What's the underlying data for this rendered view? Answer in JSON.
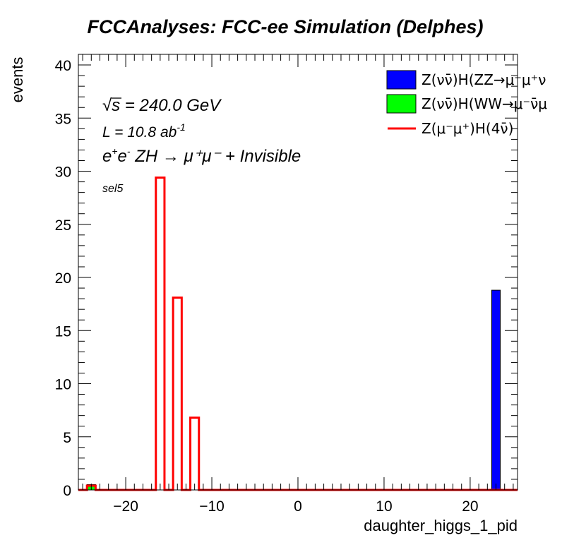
{
  "chart_data": {
    "type": "bar",
    "title": "FCCAnalyses: FCC-ee Simulation (Delphes)",
    "xlabel": "daughter_higgs_1_pid",
    "ylabel": "events",
    "xlim": [
      -25.5,
      25.5
    ],
    "ylim": [
      0,
      41
    ],
    "bin_width": 1,
    "x_ticks": [
      -20,
      -10,
      0,
      10,
      20
    ],
    "y_ticks": [
      0,
      5,
      10,
      15,
      20,
      25,
      30,
      35,
      40
    ],
    "grid": false,
    "legend_position": "top-right",
    "annotations": {
      "sqrt_s": "s",
      "sqrt_s_value": " = 240.0 GeV",
      "lumi_prefix": "L = 10.8 ab",
      "lumi_exp": "-1",
      "process": "ZH → μ⁺μ⁻ + Invisible",
      "selection": "sel5"
    },
    "series": [
      {
        "name": "Z(νν̄)H(ZZ→μ⁻μ⁺ν",
        "style": "filled",
        "color": "#0000ff",
        "bins": [
          {
            "x": 23,
            "y": 18.8
          }
        ]
      },
      {
        "name": "Z(νν̄)H(WW→μ⁻ν̄μ",
        "style": "filled",
        "color": "#00ff00",
        "bins": [
          {
            "x": -24,
            "y": 0.5
          }
        ]
      },
      {
        "name": "Z(μ⁻μ⁺)H(4ν̄)",
        "style": "line",
        "color": "#ff0000",
        "bins": [
          {
            "x": -24,
            "y": 0.4
          },
          {
            "x": -16,
            "y": 29.4
          },
          {
            "x": -14,
            "y": 18.1
          },
          {
            "x": -12,
            "y": 6.8
          }
        ]
      }
    ]
  }
}
